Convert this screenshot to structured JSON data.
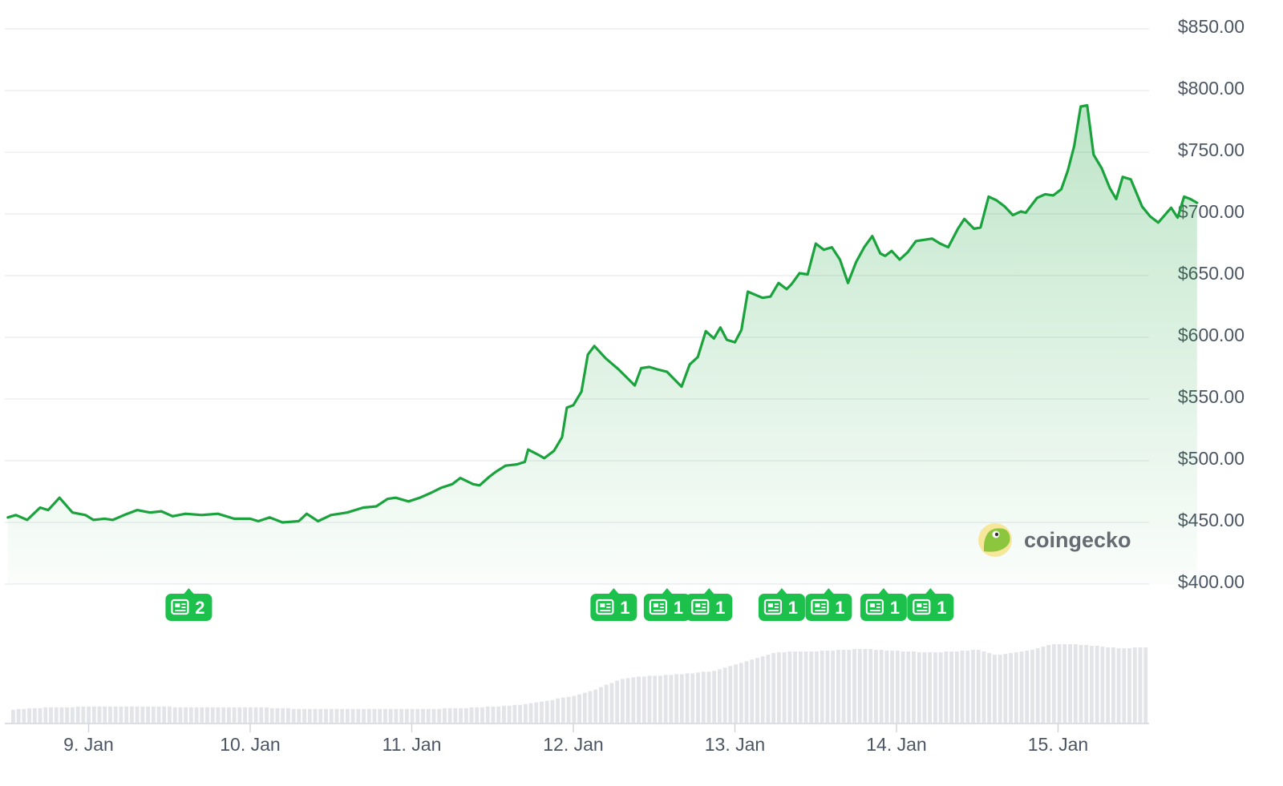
{
  "colors": {
    "line": "#1aa33c",
    "area_top": "#1aa33c",
    "grid": "#e8eaed",
    "volume_bar": "#e2e4e8",
    "badge": "#1cc14c",
    "axis_text": "#4b5563"
  },
  "watermark": {
    "text": "coingecko",
    "icon": "gecko-logo-icon"
  },
  "news_badges": [
    {
      "time": 9.62,
      "count": "2"
    },
    {
      "time": 12.25,
      "count": "1"
    },
    {
      "time": 12.58,
      "count": "1"
    },
    {
      "time": 12.84,
      "count": "1"
    },
    {
      "time": 13.29,
      "count": "1"
    },
    {
      "time": 13.58,
      "count": "1"
    },
    {
      "time": 13.92,
      "count": "1"
    },
    {
      "time": 14.21,
      "count": "1"
    }
  ],
  "chart_data": {
    "type": "area",
    "title": "",
    "xlabel": "",
    "ylabel": "",
    "x_unit": "days of January",
    "xlim": [
      8.5,
      15.57
    ],
    "ylim": [
      400,
      850
    ],
    "y_ticks": [
      "$400.00",
      "$450.00",
      "$500.00",
      "$550.00",
      "$600.00",
      "$650.00",
      "$700.00",
      "$750.00",
      "$800.00",
      "$850.00"
    ],
    "y_tick_values": [
      400,
      450,
      500,
      550,
      600,
      650,
      700,
      750,
      800,
      850
    ],
    "x_ticks": [
      "9. Jan",
      "10. Jan",
      "11. Jan",
      "12. Jan",
      "13. Jan",
      "14. Jan",
      "15. Jan"
    ],
    "x_tick_values": [
      9,
      10,
      11,
      12,
      13,
      14,
      15
    ],
    "grid": true,
    "legend": "none",
    "series": [
      {
        "values": [
          [
            8.5,
            454
          ],
          [
            8.55,
            456
          ],
          [
            8.62,
            452
          ],
          [
            8.7,
            462
          ],
          [
            8.75,
            460
          ],
          [
            8.82,
            470
          ],
          [
            8.9,
            458
          ],
          [
            8.98,
            456
          ],
          [
            9.03,
            452
          ],
          [
            9.1,
            453
          ],
          [
            9.15,
            452
          ],
          [
            9.22,
            456
          ],
          [
            9.3,
            460
          ],
          [
            9.38,
            458
          ],
          [
            9.45,
            459
          ],
          [
            9.52,
            455
          ],
          [
            9.6,
            457
          ],
          [
            9.7,
            456
          ],
          [
            9.8,
            457
          ],
          [
            9.9,
            453
          ],
          [
            10.0,
            453
          ],
          [
            10.05,
            451
          ],
          [
            10.12,
            454
          ],
          [
            10.2,
            450
          ],
          [
            10.3,
            451
          ],
          [
            10.35,
            457
          ],
          [
            10.42,
            451
          ],
          [
            10.5,
            456
          ],
          [
            10.6,
            458
          ],
          [
            10.7,
            462
          ],
          [
            10.78,
            463
          ],
          [
            10.85,
            469
          ],
          [
            10.9,
            470
          ],
          [
            10.98,
            467
          ],
          [
            11.05,
            470
          ],
          [
            11.12,
            474
          ],
          [
            11.18,
            478
          ],
          [
            11.25,
            481
          ],
          [
            11.3,
            486
          ],
          [
            11.38,
            481
          ],
          [
            11.42,
            480
          ],
          [
            11.48,
            487
          ],
          [
            11.52,
            491
          ],
          [
            11.58,
            496
          ],
          [
            11.65,
            497
          ],
          [
            11.7,
            499
          ],
          [
            11.72,
            509
          ],
          [
            11.78,
            505
          ],
          [
            11.82,
            502
          ],
          [
            11.88,
            508
          ],
          [
            11.93,
            519
          ],
          [
            11.96,
            543
          ],
          [
            12.0,
            545
          ],
          [
            12.05,
            556
          ],
          [
            12.09,
            586
          ],
          [
            12.13,
            593
          ],
          [
            12.2,
            583
          ],
          [
            12.28,
            574
          ],
          [
            12.38,
            561
          ],
          [
            12.42,
            575
          ],
          [
            12.47,
            576
          ],
          [
            12.52,
            574
          ],
          [
            12.58,
            572
          ],
          [
            12.67,
            560
          ],
          [
            12.72,
            578
          ],
          [
            12.77,
            584
          ],
          [
            12.82,
            605
          ],
          [
            12.87,
            599
          ],
          [
            12.91,
            608
          ],
          [
            12.95,
            598
          ],
          [
            13.0,
            596
          ],
          [
            13.04,
            606
          ],
          [
            13.08,
            637
          ],
          [
            13.17,
            632
          ],
          [
            13.22,
            633
          ],
          [
            13.27,
            644
          ],
          [
            13.32,
            639
          ],
          [
            13.35,
            643
          ],
          [
            13.4,
            652
          ],
          [
            13.45,
            651
          ],
          [
            13.5,
            676
          ],
          [
            13.55,
            671
          ],
          [
            13.6,
            673
          ],
          [
            13.65,
            663
          ],
          [
            13.7,
            644
          ],
          [
            13.75,
            661
          ],
          [
            13.8,
            673
          ],
          [
            13.85,
            682
          ],
          [
            13.9,
            668
          ],
          [
            13.93,
            666
          ],
          [
            13.97,
            670
          ],
          [
            14.02,
            663
          ],
          [
            14.07,
            669
          ],
          [
            14.12,
            678
          ],
          [
            14.22,
            680
          ],
          [
            14.27,
            676
          ],
          [
            14.32,
            673
          ],
          [
            14.38,
            688
          ],
          [
            14.42,
            696
          ],
          [
            14.48,
            688
          ],
          [
            14.52,
            689
          ],
          [
            14.57,
            714
          ],
          [
            14.62,
            711
          ],
          [
            14.67,
            706
          ],
          [
            14.72,
            699
          ],
          [
            14.77,
            702
          ],
          [
            14.8,
            701
          ],
          [
            14.87,
            713
          ],
          [
            14.92,
            716
          ],
          [
            14.97,
            715
          ],
          [
            15.02,
            720
          ],
          [
            15.06,
            735
          ],
          [
            15.1,
            755
          ],
          [
            15.14,
            787
          ],
          [
            15.18,
            788
          ],
          [
            15.22,
            748
          ],
          [
            15.27,
            737
          ],
          [
            15.32,
            721
          ],
          [
            15.36,
            712
          ],
          [
            15.4,
            730
          ],
          [
            15.45,
            728
          ],
          [
            15.52,
            706
          ],
          [
            15.57,
            698
          ],
          [
            15.62,
            693
          ],
          [
            15.66,
            699
          ],
          [
            15.7,
            705
          ],
          [
            15.74,
            697
          ],
          [
            15.78,
            714
          ],
          [
            15.82,
            712
          ],
          [
            15.86,
            709
          ]
        ]
      }
    ],
    "volume": [
      0.16,
      0.17,
      0.17,
      0.18,
      0.18,
      0.18,
      0.19,
      0.19,
      0.19,
      0.19,
      0.19,
      0.19,
      0.2,
      0.2,
      0.2,
      0.2,
      0.2,
      0.2,
      0.2,
      0.2,
      0.2,
      0.2,
      0.2,
      0.2,
      0.2,
      0.2,
      0.2,
      0.2,
      0.2,
      0.2,
      0.19,
      0.19,
      0.19,
      0.19,
      0.19,
      0.19,
      0.19,
      0.19,
      0.19,
      0.19,
      0.19,
      0.19,
      0.19,
      0.19,
      0.19,
      0.19,
      0.19,
      0.19,
      0.18,
      0.18,
      0.18,
      0.18,
      0.17,
      0.17,
      0.17,
      0.17,
      0.17,
      0.17,
      0.17,
      0.17,
      0.17,
      0.17,
      0.17,
      0.17,
      0.17,
      0.17,
      0.17,
      0.17,
      0.17,
      0.17,
      0.17,
      0.17,
      0.17,
      0.17,
      0.17,
      0.17,
      0.17,
      0.17,
      0.17,
      0.17,
      0.18,
      0.18,
      0.18,
      0.18,
      0.18,
      0.19,
      0.19,
      0.19,
      0.2,
      0.2,
      0.2,
      0.21,
      0.21,
      0.22,
      0.22,
      0.23,
      0.24,
      0.25,
      0.26,
      0.27,
      0.28,
      0.3,
      0.31,
      0.32,
      0.33,
      0.35,
      0.37,
      0.39,
      0.41,
      0.44,
      0.47,
      0.49,
      0.52,
      0.54,
      0.55,
      0.56,
      0.57,
      0.57,
      0.58,
      0.58,
      0.58,
      0.59,
      0.59,
      0.6,
      0.6,
      0.61,
      0.61,
      0.62,
      0.63,
      0.63,
      0.64,
      0.66,
      0.68,
      0.7,
      0.72,
      0.74,
      0.76,
      0.78,
      0.8,
      0.82,
      0.84,
      0.86,
      0.87,
      0.87,
      0.88,
      0.88,
      0.88,
      0.88,
      0.88,
      0.88,
      0.89,
      0.89,
      0.89,
      0.9,
      0.9,
      0.9,
      0.91,
      0.91,
      0.91,
      0.91,
      0.9,
      0.9,
      0.89,
      0.89,
      0.89,
      0.88,
      0.88,
      0.88,
      0.87,
      0.87,
      0.87,
      0.87,
      0.87,
      0.88,
      0.88,
      0.88,
      0.89,
      0.89,
      0.9,
      0.9,
      0.88,
      0.86,
      0.84,
      0.84,
      0.85,
      0.86,
      0.87,
      0.88,
      0.89,
      0.9,
      0.92,
      0.94,
      0.96,
      0.97,
      0.97,
      0.97,
      0.97,
      0.97,
      0.96,
      0.96,
      0.95,
      0.95,
      0.94,
      0.93,
      0.93,
      0.92,
      0.92,
      0.92,
      0.93,
      0.93,
      0.93
    ]
  }
}
